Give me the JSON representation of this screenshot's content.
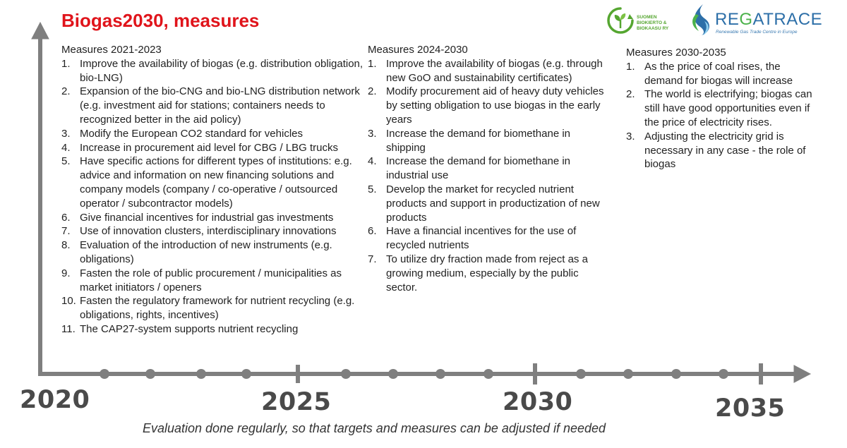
{
  "title": "Biogas2030, measures",
  "title_color": "#e0141b",
  "logos": {
    "suomen": {
      "icon": "sprout-recycle-icon",
      "text": "SUOMEN BIOKIERTO & BIOKAASU RY"
    },
    "regatrace": {
      "icon": "regatrace-wave-icon",
      "name_re": "RE",
      "name_g": "G",
      "name_rest": "ATRACE",
      "tagline": "Renewable Gas Trade Centre in Europe"
    }
  },
  "columns": [
    {
      "heading": "Measures 2021-2023",
      "items": [
        {
          "n": "1.",
          "text": "Improve the availability of biogas (e.g. distribution obligation, bio-LNG)"
        },
        {
          "n": "2.",
          "text": "Expansion of the bio-CNG and bio-LNG distribution network (e.g. investment aid for stations;  containers needs to recognized better in the aid policy)"
        },
        {
          "n": "3.",
          "text": "Modify the European CO2 standard for vehicles"
        },
        {
          "n": "4.",
          "text": "Increase in procurement aid level for CBG / LBG trucks"
        },
        {
          "n": "5.",
          "text": "Have specific actions for different types of institutions: e.g. advice and information on new financing solutions and company models (company / co-operative / outsourced operator / subcontractor models)"
        },
        {
          "n": "6.",
          "text": "Give financial incentives for industrial gas investments"
        },
        {
          "n": "7.",
          "text": "Use of innovation clusters, interdisciplinary innovations"
        },
        {
          "n": "8.",
          "text": "Evaluation of the introduction of new instruments (e.g. obligations)"
        },
        {
          "n": "9.",
          "text": "Fasten the role of public procurement / municipalities as market initiators / openers"
        },
        {
          "n": "10.",
          "text": "Fasten the regulatory framework for nutrient recycling (e.g. obligations, rights, incentives)"
        },
        {
          "n": "11.",
          "text": "The CAP27-system supports nutrient recycling"
        }
      ]
    },
    {
      "heading": "Measures 2024-2030",
      "items": [
        {
          "n": "1.",
          "text": "Improve the availability of biogas (e.g. through new GoO and sustainability certificates)"
        },
        {
          "n": "2.",
          "text": "Modify procurement aid of heavy duty vehicles by setting obligation to use biogas in the early years"
        },
        {
          "n": "3.",
          "text": "Increase the demand for biomethane in shipping"
        },
        {
          "n": "4.",
          "text": "Increase the demand for biomethane in industrial use"
        },
        {
          "n": "5.",
          "text": "Develop the market for recycled nutrient products and support in productization of new products"
        },
        {
          "n": "6.",
          "text": "Have a financial incentives for the use of recycled nutrients"
        },
        {
          "n": "7.",
          "text": "To utilize dry fraction made from reject as a growing medium, especially by the public sector."
        }
      ]
    },
    {
      "heading": "Measures 2030-2035",
      "items": [
        {
          "n": "1.",
          "text": "As the price of coal rises, the demand for biogas will increase"
        },
        {
          "n": "2.",
          "text": "The world is electrifying; biogas can still have good opportunities even if the price of electricity rises."
        },
        {
          "n": "3.",
          "text": "Adjusting the electricity grid is necessary in any case - the role of biogas"
        }
      ]
    }
  ],
  "timeline": {
    "years": [
      "2020",
      "2025",
      "2030",
      "2035"
    ],
    "axis_color": "#7f7f7f"
  },
  "footer": "Evaluation done regularly, so that targets and measures can be adjusted if needed"
}
